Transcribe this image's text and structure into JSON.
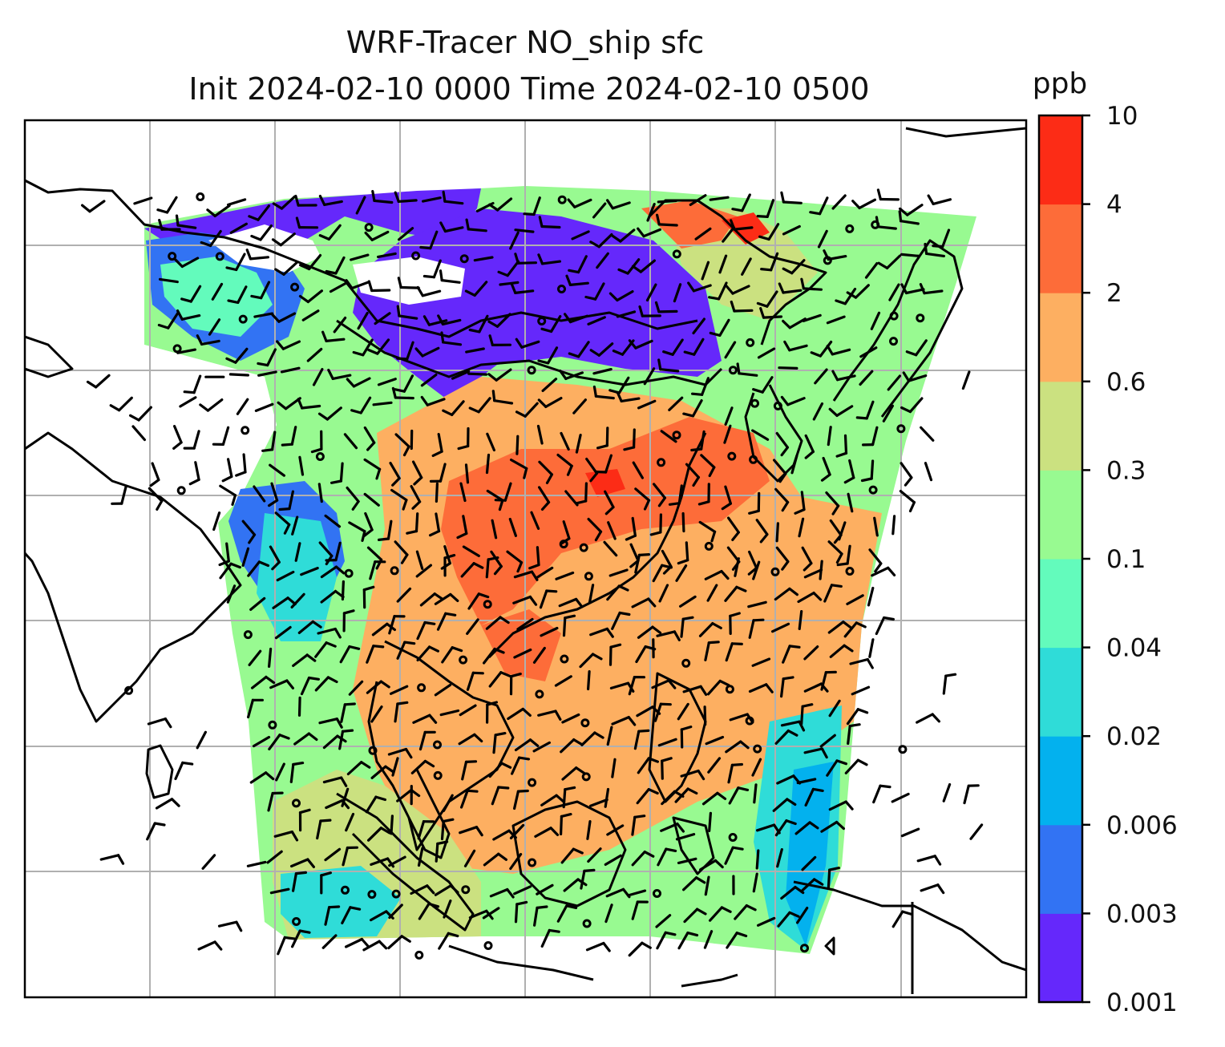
{
  "title": {
    "line1": "WRF-Tracer NO_ship sfc",
    "line2": "Init 2024-02-10 0000 Time 2024-02-10 0500"
  },
  "colorbar": {
    "unit": "ppb",
    "ticks": [
      "0.001",
      "0.003",
      "0.006",
      "0.02",
      "0.04",
      "0.1",
      "0.3",
      "0.6",
      "2",
      "4",
      "10"
    ],
    "colors": [
      "#6528fb",
      "#3273f3",
      "#03b1ee",
      "#2fdcd8",
      "#63fbbc",
      "#98fa91",
      "#cbe180",
      "#fdaf61",
      "#fd6c39",
      "#fc2c16"
    ]
  },
  "map": {
    "background": "#ffffff",
    "gridline_color": "#b0b0b0",
    "coastline_color": "#000000",
    "no_data_color": "#ffffff"
  }
}
